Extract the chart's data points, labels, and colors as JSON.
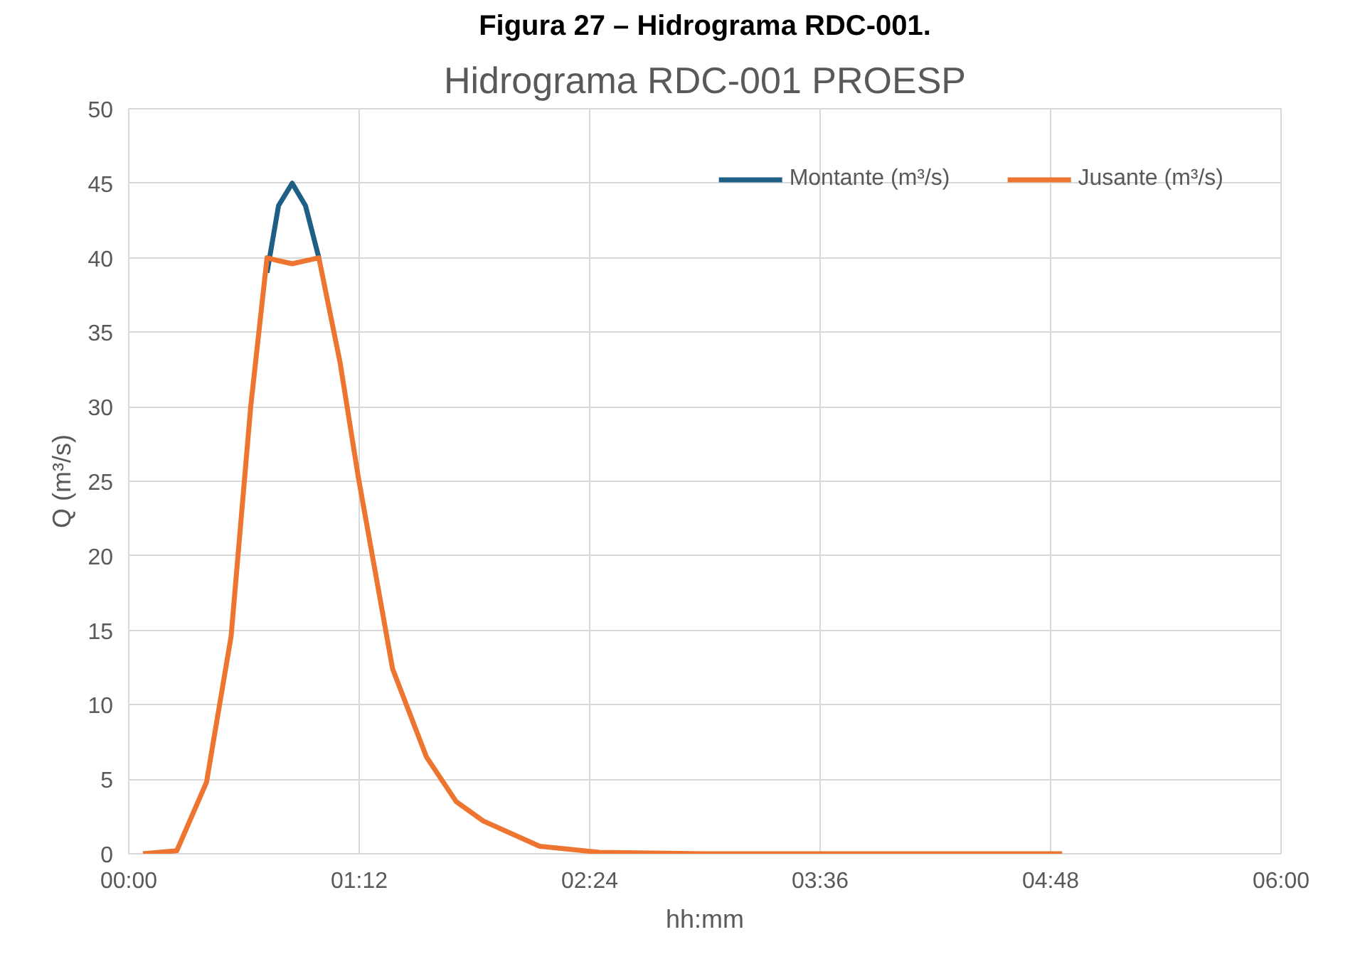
{
  "chart_data": {
    "type": "line",
    "title": "Hidrograma RDC-001 PROESP",
    "xlabel": "hh:mm",
    "ylabel": "Q (m³/s)",
    "annotations": [
      "Figura 27 – Hidrograma RDC-001."
    ],
    "xlim": [
      0,
      6
    ],
    "xticks": [
      {
        "value": 0,
        "label": "00:00"
      },
      {
        "value": 1.2,
        "label": "01:12"
      },
      {
        "value": 2.4,
        "label": "02:24"
      },
      {
        "value": 3.6,
        "label": "03:36"
      },
      {
        "value": 4.8,
        "label": "04:48"
      },
      {
        "value": 6,
        "label": "06:00"
      }
    ],
    "ylim": [
      0,
      50
    ],
    "yticks": [
      0,
      5,
      10,
      15,
      20,
      25,
      30,
      35,
      40,
      45,
      50
    ],
    "grid": true,
    "legend": "top right",
    "line_style": "solid",
    "series": [
      {
        "name": "Montante (m³/s)",
        "color": "#1f5f86",
        "x": [
          0.72,
          0.78,
          0.851,
          0.92,
          0.99
        ],
        "values": [
          39,
          43.5,
          45,
          43.5,
          40
        ]
      },
      {
        "name": "Jusante (m³/s)",
        "color": "#ed7530",
        "x": [
          0.074,
          0.25,
          0.405,
          0.533,
          0.635,
          0.72,
          0.78,
          0.851,
          0.92,
          0.99,
          1.1,
          1.195,
          1.374,
          1.55,
          1.705,
          1.846,
          2.14,
          2.45,
          3.0,
          4.86
        ],
        "values": [
          0,
          0.2,
          4.8,
          14.6,
          30,
          40,
          39.8,
          39.6,
          39.8,
          40,
          33,
          25.3,
          12.4,
          6.5,
          3.5,
          2.2,
          0.5,
          0.1,
          0,
          0
        ]
      }
    ]
  }
}
